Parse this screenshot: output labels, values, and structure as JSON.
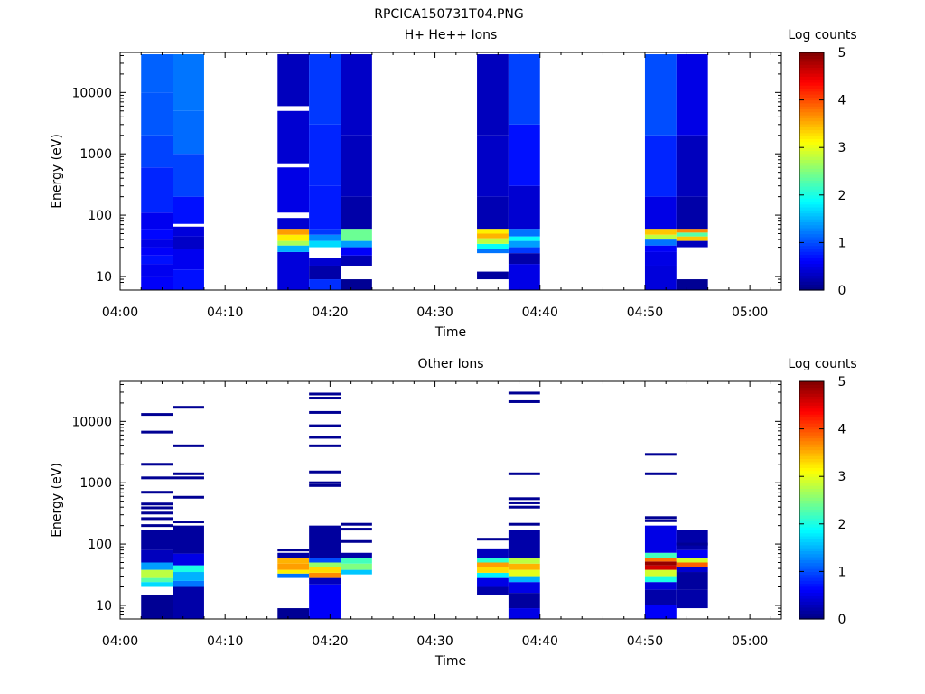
{
  "figure_title": "RPCICA150731T04.PNG",
  "chart_data": [
    {
      "type": "heatmap",
      "title": "H+ He++ Ions",
      "xlabel": "Time",
      "ylabel": "Energy (eV)",
      "y_scale": "log",
      "ylim": [
        6,
        45000
      ],
      "xlim": [
        "04:00",
        "05:03"
      ],
      "x_ticks": [
        "04:00",
        "04:10",
        "04:20",
        "04:30",
        "04:40",
        "04:50",
        "05:00"
      ],
      "y_ticks": [
        "10",
        "100",
        "1000",
        "10000"
      ],
      "colorbar": {
        "label": "Log counts",
        "ticks": [
          "0",
          "1",
          "2",
          "3",
          "4",
          "5"
        ],
        "range": [
          0,
          5
        ],
        "colormap": "jet"
      },
      "scans": [
        {
          "start": "04:02",
          "end": "04:05",
          "bands": [
            {
              "e0": 6,
              "e1": 10,
              "v": 0.6
            },
            {
              "e0": 10,
              "e1": 16,
              "v": 0.55
            },
            {
              "e0": 16,
              "e1": 22,
              "v": 0.7
            },
            {
              "e0": 22,
              "e1": 30,
              "v": 0.6
            },
            {
              "e0": 30,
              "e1": 40,
              "v": 0.5
            },
            {
              "e0": 40,
              "e1": 60,
              "v": 0.65
            },
            {
              "e0": 60,
              "e1": 110,
              "v": 0.55
            },
            {
              "e0": 110,
              "e1": 600,
              "v": 0.8
            },
            {
              "e0": 600,
              "e1": 2000,
              "v": 0.95
            },
            {
              "e0": 2000,
              "e1": 10000,
              "v": 1.05
            },
            {
              "e0": 10000,
              "e1": 42000,
              "v": 1.1
            }
          ]
        },
        {
          "start": "04:05",
          "end": "04:08",
          "bands": [
            {
              "e0": 6,
              "e1": 13,
              "v": 0.7
            },
            {
              "e0": 13,
              "e1": 28,
              "v": 0.55
            },
            {
              "e0": 28,
              "e1": 45,
              "v": 0.35
            },
            {
              "e0": 45,
              "e1": 65,
              "v": 0.45
            },
            {
              "e0": 72,
              "e1": 200,
              "v": 0.7
            },
            {
              "e0": 200,
              "e1": 1000,
              "v": 0.95
            },
            {
              "e0": 1000,
              "e1": 5000,
              "v": 1.15
            },
            {
              "e0": 5000,
              "e1": 42000,
              "v": 1.2
            }
          ]
        },
        {
          "start": "04:15",
          "end": "04:18",
          "bands": [
            {
              "e0": 6,
              "e1": 25,
              "v": 0.45
            },
            {
              "e0": 25,
              "e1": 32,
              "v": 1.5
            },
            {
              "e0": 32,
              "e1": 38,
              "v": 2.7
            },
            {
              "e0": 38,
              "e1": 48,
              "v": 3.2
            },
            {
              "e0": 48,
              "e1": 60,
              "v": 3.6
            },
            {
              "e0": 60,
              "e1": 90,
              "v": 0.4
            },
            {
              "e0": 110,
              "e1": 600,
              "v": 0.5
            },
            {
              "e0": 700,
              "e1": 5000,
              "v": 0.4
            },
            {
              "e0": 6000,
              "e1": 42000,
              "v": 0.3
            }
          ]
        },
        {
          "start": "04:18",
          "end": "04:21",
          "bands": [
            {
              "e0": 6,
              "e1": 9,
              "v": 0.85
            },
            {
              "e0": 9,
              "e1": 15,
              "v": 0.2
            },
            {
              "e0": 15,
              "e1": 20,
              "v": 0.4
            },
            {
              "e0": 30,
              "e1": 38,
              "v": 1.7
            },
            {
              "e0": 38,
              "e1": 48,
              "v": 1.3
            },
            {
              "e0": 48,
              "e1": 60,
              "v": 0.9
            },
            {
              "e0": 60,
              "e1": 300,
              "v": 0.75
            },
            {
              "e0": 300,
              "e1": 3000,
              "v": 0.8
            },
            {
              "e0": 3000,
              "e1": 42000,
              "v": 0.9
            }
          ]
        },
        {
          "start": "04:21",
          "end": "04:24",
          "bands": [
            {
              "e0": 6,
              "e1": 9,
              "v": 0.1
            },
            {
              "e0": 15,
              "e1": 22,
              "v": 0.25
            },
            {
              "e0": 22,
              "e1": 30,
              "v": 0.6
            },
            {
              "e0": 30,
              "e1": 38,
              "v": 1.4
            },
            {
              "e0": 38,
              "e1": 60,
              "v": 2.4
            },
            {
              "e0": 60,
              "e1": 200,
              "v": 0.2
            },
            {
              "e0": 200,
              "e1": 2000,
              "v": 0.3
            },
            {
              "e0": 2000,
              "e1": 42000,
              "v": 0.35
            }
          ]
        },
        {
          "start": "04:34",
          "end": "04:37",
          "bands": [
            {
              "e0": 9,
              "e1": 12,
              "v": 0.15
            },
            {
              "e0": 24,
              "e1": 28,
              "v": 1.2
            },
            {
              "e0": 28,
              "e1": 34,
              "v": 1.9
            },
            {
              "e0": 34,
              "e1": 42,
              "v": 2.8
            },
            {
              "e0": 42,
              "e1": 50,
              "v": 3.5
            },
            {
              "e0": 50,
              "e1": 60,
              "v": 3.2
            },
            {
              "e0": 60,
              "e1": 200,
              "v": 0.25
            },
            {
              "e0": 200,
              "e1": 2000,
              "v": 0.35
            },
            {
              "e0": 2000,
              "e1": 42000,
              "v": 0.3
            }
          ]
        },
        {
          "start": "04:37",
          "end": "04:40",
          "bands": [
            {
              "e0": 6,
              "e1": 16,
              "v": 0.5
            },
            {
              "e0": 16,
              "e1": 24,
              "v": 0.2
            },
            {
              "e0": 24,
              "e1": 30,
              "v": 0.9
            },
            {
              "e0": 30,
              "e1": 38,
              "v": 1.4
            },
            {
              "e0": 38,
              "e1": 45,
              "v": 1.9
            },
            {
              "e0": 45,
              "e1": 60,
              "v": 1.2
            },
            {
              "e0": 60,
              "e1": 300,
              "v": 0.4
            },
            {
              "e0": 300,
              "e1": 3000,
              "v": 0.7
            },
            {
              "e0": 3000,
              "e1": 42000,
              "v": 0.95
            }
          ]
        },
        {
          "start": "04:50",
          "end": "04:53",
          "bands": [
            {
              "e0": 6,
              "e1": 15,
              "v": 0.45
            },
            {
              "e0": 15,
              "e1": 25,
              "v": 0.5
            },
            {
              "e0": 25,
              "e1": 32,
              "v": 0.6
            },
            {
              "e0": 32,
              "e1": 40,
              "v": 1.2
            },
            {
              "e0": 40,
              "e1": 48,
              "v": 2.8
            },
            {
              "e0": 48,
              "e1": 60,
              "v": 3.4
            },
            {
              "e0": 60,
              "e1": 200,
              "v": 0.5
            },
            {
              "e0": 200,
              "e1": 2000,
              "v": 0.8
            },
            {
              "e0": 2000,
              "e1": 42000,
              "v": 1.0
            }
          ]
        },
        {
          "start": "04:53",
          "end": "04:56",
          "bands": [
            {
              "e0": 6,
              "e1": 9,
              "v": 0.1
            },
            {
              "e0": 30,
              "e1": 38,
              "v": 0.3
            },
            {
              "e0": 38,
              "e1": 45,
              "v": 3.4
            },
            {
              "e0": 45,
              "e1": 52,
              "v": 2.3
            },
            {
              "e0": 52,
              "e1": 60,
              "v": 3.7
            },
            {
              "e0": 60,
              "e1": 200,
              "v": 0.2
            },
            {
              "e0": 200,
              "e1": 2000,
              "v": 0.3
            },
            {
              "e0": 2000,
              "e1": 42000,
              "v": 0.5
            }
          ]
        }
      ]
    },
    {
      "type": "heatmap",
      "title": "Other Ions",
      "xlabel": "Time",
      "ylabel": "Energy (eV)",
      "y_scale": "log",
      "ylim": [
        6,
        45000
      ],
      "xlim": [
        "04:00",
        "05:03"
      ],
      "x_ticks": [
        "04:00",
        "04:10",
        "04:20",
        "04:30",
        "04:40",
        "04:50",
        "05:00"
      ],
      "y_ticks": [
        "10",
        "100",
        "1000",
        "10000"
      ],
      "colorbar": {
        "label": "Log counts",
        "ticks": [
          "0",
          "1",
          "2",
          "3",
          "4",
          "5"
        ],
        "range": [
          0,
          5
        ],
        "colormap": "jet"
      },
      "scans": [
        {
          "start": "04:02",
          "end": "04:05",
          "bands": [
            {
              "e0": 6,
              "e1": 15,
              "v": 0.1
            },
            {
              "e0": 20,
              "e1": 24,
              "v": 1.7
            },
            {
              "e0": 24,
              "e1": 28,
              "v": 2.3
            },
            {
              "e0": 28,
              "e1": 38,
              "v": 2.8
            },
            {
              "e0": 38,
              "e1": 50,
              "v": 1.4
            },
            {
              "e0": 50,
              "e1": 80,
              "v": 0.3
            },
            {
              "e0": 80,
              "e1": 170,
              "v": 0.15
            }
          ],
          "lines": [
            200,
            260,
            320,
            390,
            450,
            700,
            1200,
            2000,
            6700,
            13000
          ],
          "line_v": 0.1
        },
        {
          "start": "04:05",
          "end": "04:08",
          "bands": [
            {
              "e0": 6,
              "e1": 20,
              "v": 0.2
            },
            {
              "e0": 20,
              "e1": 25,
              "v": 1.2
            },
            {
              "e0": 25,
              "e1": 35,
              "v": 1.5
            },
            {
              "e0": 35,
              "e1": 45,
              "v": 2.0
            },
            {
              "e0": 45,
              "e1": 70,
              "v": 0.5
            },
            {
              "e0": 70,
              "e1": 200,
              "v": 0.15
            }
          ],
          "lines": [
            230,
            580,
            1200,
            1400,
            4000,
            17000
          ],
          "line_v": 0.1
        },
        {
          "start": "04:15",
          "end": "04:18",
          "bands": [
            {
              "e0": 6,
              "e1": 9,
              "v": 0.1
            },
            {
              "e0": 28,
              "e1": 33,
              "v": 1.2
            },
            {
              "e0": 33,
              "e1": 38,
              "v": 3.2
            },
            {
              "e0": 38,
              "e1": 48,
              "v": 3.6
            },
            {
              "e0": 48,
              "e1": 60,
              "v": 3.5
            },
            {
              "e0": 60,
              "e1": 72,
              "v": 0.2
            }
          ],
          "lines": [
            80
          ],
          "line_v": 0.1
        },
        {
          "start": "04:18",
          "end": "04:21",
          "bands": [
            {
              "e0": 6,
              "e1": 22,
              "v": 0.6
            },
            {
              "e0": 22,
              "e1": 28,
              "v": 0.3
            },
            {
              "e0": 28,
              "e1": 34,
              "v": 3.7
            },
            {
              "e0": 34,
              "e1": 42,
              "v": 3.3
            },
            {
              "e0": 42,
              "e1": 50,
              "v": 2.6
            },
            {
              "e0": 50,
              "e1": 60,
              "v": 1.0
            },
            {
              "e0": 60,
              "e1": 200,
              "v": 0.15
            }
          ],
          "lines": [
            900,
            1000,
            1500,
            4000,
            5500,
            8500,
            14000,
            24000,
            28000
          ],
          "line_v": 0.1
        },
        {
          "start": "04:21",
          "end": "04:24",
          "bands": [
            {
              "e0": 32,
              "e1": 38,
              "v": 1.6
            },
            {
              "e0": 38,
              "e1": 48,
              "v": 2.5
            },
            {
              "e0": 48,
              "e1": 60,
              "v": 2.2
            },
            {
              "e0": 60,
              "e1": 72,
              "v": 0.2
            }
          ],
          "lines": [
            110,
            175,
            210
          ],
          "line_v": 0.1
        },
        {
          "start": "04:34",
          "end": "04:37",
          "bands": [
            {
              "e0": 15,
              "e1": 20,
              "v": 0.2
            },
            {
              "e0": 20,
              "e1": 28,
              "v": 0.5
            },
            {
              "e0": 28,
              "e1": 34,
              "v": 1.8
            },
            {
              "e0": 34,
              "e1": 42,
              "v": 3.3
            },
            {
              "e0": 42,
              "e1": 50,
              "v": 3.6
            },
            {
              "e0": 50,
              "e1": 60,
              "v": 2.1
            },
            {
              "e0": 60,
              "e1": 85,
              "v": 0.3
            }
          ],
          "lines": [
            120
          ],
          "line_v": 0.1
        },
        {
          "start": "04:37",
          "end": "04:40",
          "bands": [
            {
              "e0": 6,
              "e1": 9,
              "v": 0.5
            },
            {
              "e0": 9,
              "e1": 16,
              "v": 0.15
            },
            {
              "e0": 16,
              "e1": 24,
              "v": 0.5
            },
            {
              "e0": 24,
              "e1": 30,
              "v": 1.5
            },
            {
              "e0": 30,
              "e1": 38,
              "v": 3.0
            },
            {
              "e0": 38,
              "e1": 48,
              "v": 3.5
            },
            {
              "e0": 48,
              "e1": 60,
              "v": 2.8
            },
            {
              "e0": 60,
              "e1": 170,
              "v": 0.2
            }
          ],
          "lines": [
            210,
            400,
            470,
            550,
            1400,
            21000,
            29000
          ],
          "line_v": 0.1
        },
        {
          "start": "04:50",
          "end": "04:53",
          "bands": [
            {
              "e0": 6,
              "e1": 10,
              "v": 0.6
            },
            {
              "e0": 10,
              "e1": 18,
              "v": 0.2
            },
            {
              "e0": 18,
              "e1": 24,
              "v": 0.45
            },
            {
              "e0": 24,
              "e1": 30,
              "v": 2.0
            },
            {
              "e0": 30,
              "e1": 38,
              "v": 2.9
            },
            {
              "e0": 38,
              "e1": 45,
              "v": 4.6
            },
            {
              "e0": 45,
              "e1": 52,
              "v": 4.9
            },
            {
              "e0": 52,
              "e1": 60,
              "v": 3.8
            },
            {
              "e0": 60,
              "e1": 72,
              "v": 2.2
            },
            {
              "e0": 72,
              "e1": 200,
              "v": 0.5
            }
          ],
          "lines": [
            240,
            270,
            1400,
            2900
          ],
          "line_v": 0.1
        },
        {
          "start": "04:53",
          "end": "04:56",
          "bands": [
            {
              "e0": 9,
              "e1": 18,
              "v": 0.2
            },
            {
              "e0": 18,
              "e1": 35,
              "v": 0.15
            },
            {
              "e0": 35,
              "e1": 42,
              "v": 0.4
            },
            {
              "e0": 42,
              "e1": 50,
              "v": 3.9
            },
            {
              "e0": 50,
              "e1": 60,
              "v": 2.9
            },
            {
              "e0": 60,
              "e1": 80,
              "v": 0.6
            },
            {
              "e0": 80,
              "e1": 170,
              "v": 0.2
            }
          ],
          "lines": [
            100
          ],
          "line_v": 0.1
        }
      ]
    }
  ]
}
